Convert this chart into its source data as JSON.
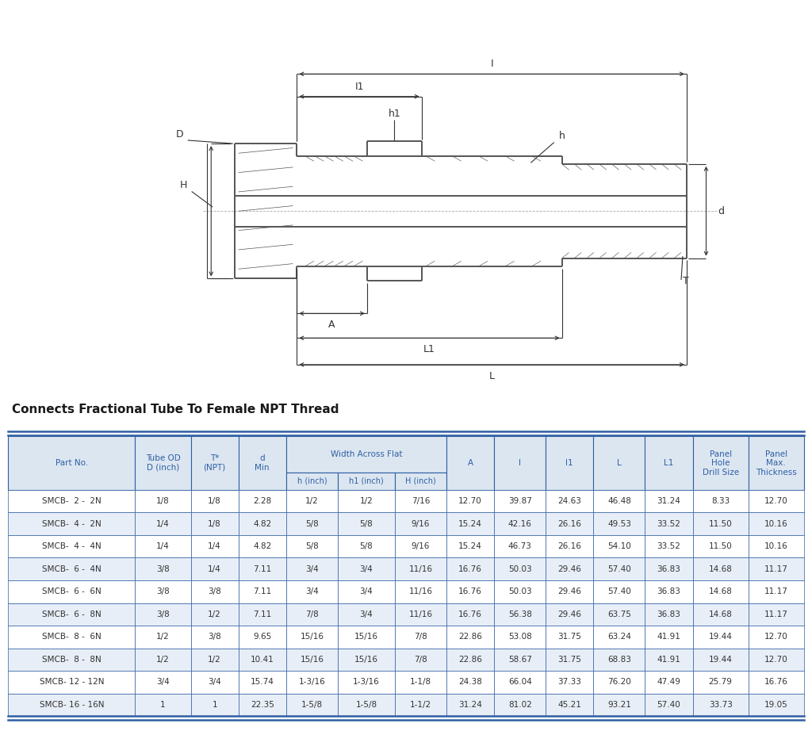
{
  "title": "Connects Fractional Tube To Female NPT Thread",
  "title_color": "#1a1a1a",
  "header_bg_color": "#dce6f1",
  "header_text_color": "#2e5fa3",
  "row_colors": [
    "#ffffff",
    "#e8eef7"
  ],
  "border_color": "#2e5fa3",
  "text_color": "#333333",
  "col_widths": [
    1.6,
    0.7,
    0.6,
    0.6,
    0.65,
    0.72,
    0.65,
    0.6,
    0.65,
    0.6,
    0.65,
    0.6,
    0.7,
    0.7
  ],
  "sub_header": [
    "h (inch)",
    "h1 (inch)",
    "H (inch)"
  ],
  "rows": [
    [
      "SMCB-  2 -  2N",
      "1/8",
      "1/8",
      "2.28",
      "1/2",
      "1/2",
      "7/16",
      "12.70",
      "39.87",
      "24.63",
      "46.48",
      "31.24",
      "8.33",
      "12.70"
    ],
    [
      "SMCB-  4 -  2N",
      "1/4",
      "1/8",
      "4.82",
      "5/8",
      "5/8",
      "9/16",
      "15.24",
      "42.16",
      "26.16",
      "49.53",
      "33.52",
      "11.50",
      "10.16"
    ],
    [
      "SMCB-  4 -  4N",
      "1/4",
      "1/4",
      "4.82",
      "5/8",
      "5/8",
      "9/16",
      "15.24",
      "46.73",
      "26.16",
      "54.10",
      "33.52",
      "11.50",
      "10.16"
    ],
    [
      "SMCB-  6 -  4N",
      "3/8",
      "1/4",
      "7.11",
      "3/4",
      "3/4",
      "11/16",
      "16.76",
      "50.03",
      "29.46",
      "57.40",
      "36.83",
      "14.68",
      "11.17"
    ],
    [
      "SMCB-  6 -  6N",
      "3/8",
      "3/8",
      "7.11",
      "3/4",
      "3/4",
      "11/16",
      "16.76",
      "50.03",
      "29.46",
      "57.40",
      "36.83",
      "14.68",
      "11.17"
    ],
    [
      "SMCB-  6 -  8N",
      "3/8",
      "1/2",
      "7.11",
      "7/8",
      "3/4",
      "11/16",
      "16.76",
      "56.38",
      "29.46",
      "63.75",
      "36.83",
      "14.68",
      "11.17"
    ],
    [
      "SMCB-  8 -  6N",
      "1/2",
      "3/8",
      "9.65",
      "15/16",
      "15/16",
      "7/8",
      "22.86",
      "53.08",
      "31.75",
      "63.24",
      "41.91",
      "19.44",
      "12.70"
    ],
    [
      "SMCB-  8 -  8N",
      "1/2",
      "1/2",
      "10.41",
      "15/16",
      "15/16",
      "7/8",
      "22.86",
      "58.67",
      "31.75",
      "68.83",
      "41.91",
      "19.44",
      "12.70"
    ],
    [
      "SMCB- 12 - 12N",
      "3/4",
      "3/4",
      "15.74",
      "1-3/16",
      "1-3/16",
      "1-1/8",
      "24.38",
      "66.04",
      "37.33",
      "76.20",
      "47.49",
      "25.79",
      "16.76"
    ],
    [
      "SMCB- 16 - 16N",
      "1",
      "1",
      "22.35",
      "1-5/8",
      "1-5/8",
      "1-1/2",
      "31.24",
      "81.02",
      "45.21",
      "93.21",
      "57.40",
      "33.73",
      "19.05"
    ]
  ],
  "background_color": "#ffffff"
}
